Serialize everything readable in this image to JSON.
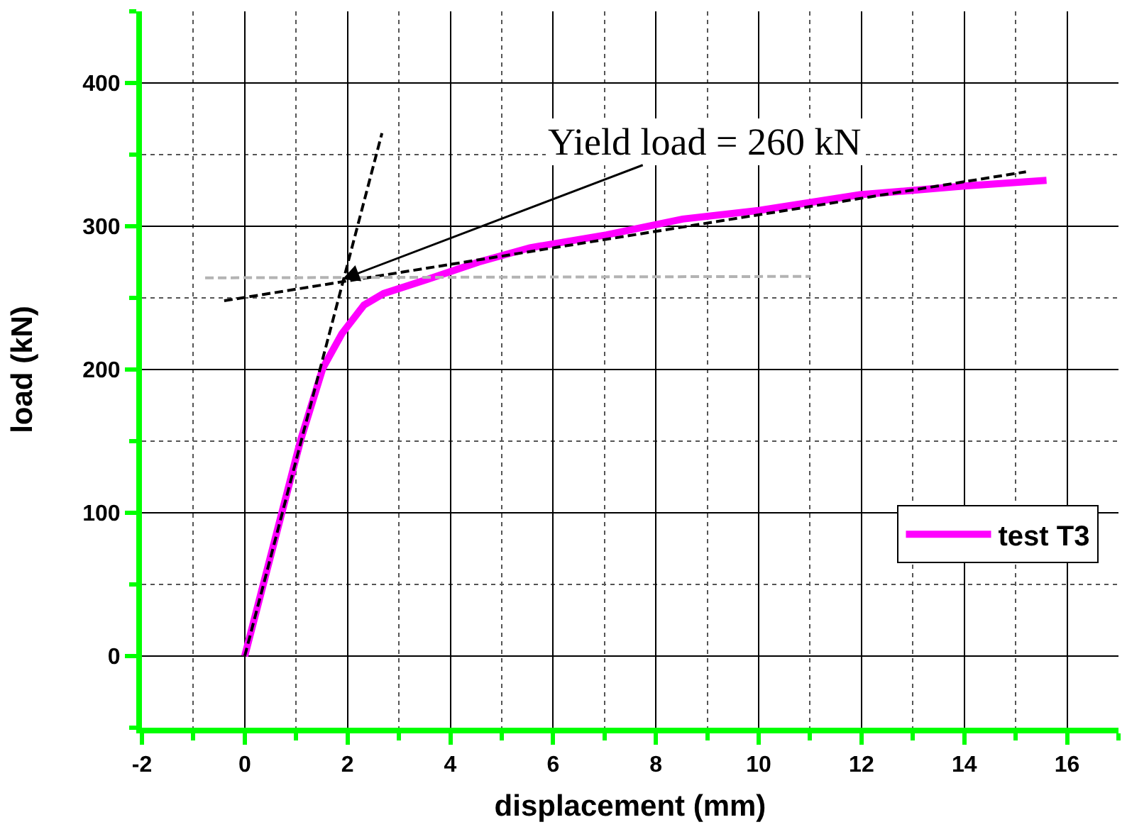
{
  "chart_data": {
    "type": "line",
    "xlabel": "displacement (mm)",
    "ylabel": "load (kN)",
    "xlim": [
      -2,
      17
    ],
    "ylim": [
      -50,
      450
    ],
    "xticks": [
      -2,
      0,
      2,
      4,
      6,
      8,
      10,
      12,
      14,
      16
    ],
    "yticks": [
      0,
      100,
      200,
      300,
      400
    ],
    "grid": true,
    "legend": "bottom right",
    "marker": "none",
    "series": [
      {
        "name": "test T3",
        "color": "#ff00ff",
        "line_style": "solid",
        "x": [
          0,
          1.09,
          1.52,
          1.89,
          2.32,
          2.7,
          3.56,
          4.55,
          5.55,
          7.04,
          8.52,
          10,
          11.97,
          13.96,
          15.6
        ],
        "values": [
          0,
          151,
          201,
          225,
          245,
          253,
          263,
          275,
          285,
          294,
          305,
          311,
          322,
          328,
          332
        ]
      },
      {
        "color": "#000000",
        "line_style": "dashed",
        "x": [
          0,
          2.67
        ],
        "values": [
          0,
          365
        ]
      },
      {
        "color": "#000000",
        "line_style": "dashed",
        "x": [
          -0.4,
          15.2
        ],
        "values": [
          248,
          338
        ]
      },
      {
        "color": "#b3b3b3",
        "line_style": "dashed",
        "x": [
          -0.77,
          11.0
        ],
        "values": [
          264,
          265
        ]
      }
    ],
    "annotations": [
      {
        "text": "Yield load = 260 kN",
        "x": 1.9,
        "y": 263
      }
    ]
  }
}
